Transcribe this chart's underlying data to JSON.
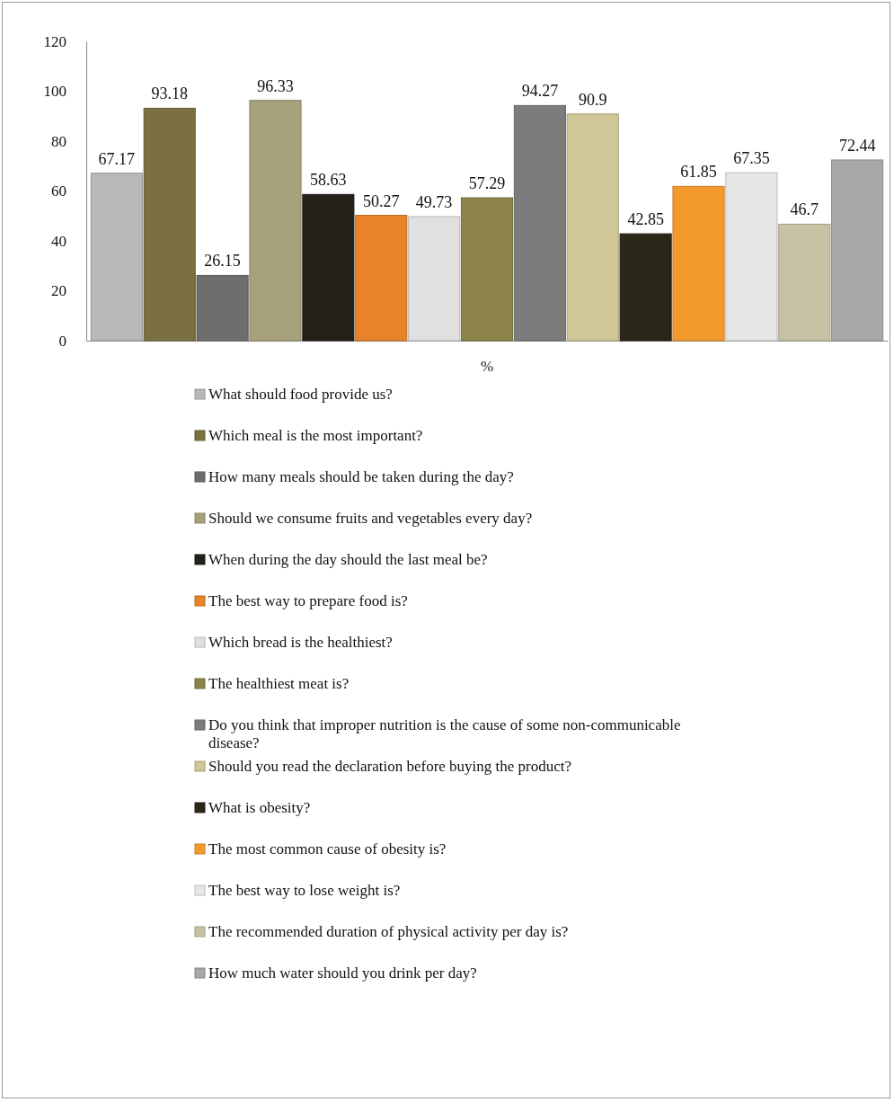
{
  "chart_data": {
    "type": "bar",
    "categories": [
      "%"
    ],
    "ylim": [
      0,
      120
    ],
    "yticks": [
      0,
      20,
      40,
      60,
      80,
      100,
      120
    ],
    "grid": false,
    "legend": "bottom",
    "data_labels": true,
    "series": [
      {
        "name": "What should food provide us?",
        "color": "#b8b8b8",
        "values": [
          67.17
        ]
      },
      {
        "name": "Which meal is the most important?",
        "color": "#7a7040",
        "values": [
          93.18
        ]
      },
      {
        "name": "How many meals should be taken during the day?",
        "color": "#6e6e6e",
        "values": [
          26.15
        ]
      },
      {
        "name": "Should we consume fruits and vegetables every day?",
        "color": "#a8a27c",
        "values": [
          96.33
        ]
      },
      {
        "name": "When during the day should the last meal be?",
        "color": "#24201a",
        "values": [
          58.63
        ]
      },
      {
        "name": "The best way to prepare food is?",
        "color": "#e8832a",
        "values": [
          50.27
        ]
      },
      {
        "name": "Which bread is the healthiest?",
        "color": "#e0e0e0",
        "values": [
          49.73
        ]
      },
      {
        "name": "The healthiest meat is?",
        "color": "#8c8448",
        "values": [
          57.29
        ]
      },
      {
        "name": "Do you think that improper nutrition is the cause of some non-communicable disease?",
        "color": "#7c7c7c",
        "values": [
          94.27
        ]
      },
      {
        "name": "Should you read the declaration before buying the product?",
        "color": "#cfc796",
        "values": [
          90.9
        ]
      },
      {
        "name": "What is obesity?",
        "color": "#2a2618",
        "values": [
          42.85
        ]
      },
      {
        "name": "The most common cause of obesity is?",
        "color": "#f39a2e",
        "values": [
          61.85
        ]
      },
      {
        "name": "The best way to lose weight is?",
        "color": "#e6e6e6",
        "values": [
          67.35
        ]
      },
      {
        "name": "The recommended duration of physical activity per day is?",
        "color": "#c8c2a4",
        "values": [
          46.7
        ]
      },
      {
        "name": "How much water should you drink per day?",
        "color": "#a8a8a8",
        "values": [
          72.44
        ]
      }
    ]
  }
}
